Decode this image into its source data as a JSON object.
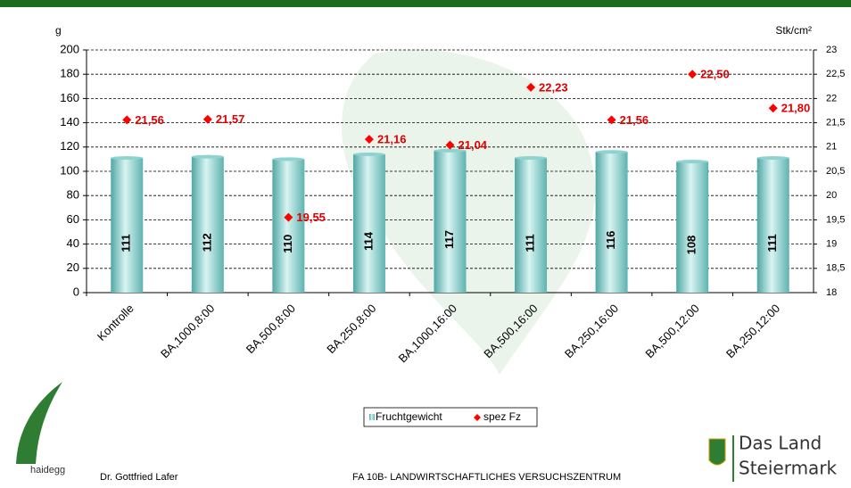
{
  "chart_data": {
    "type": "bar",
    "categories": [
      "Kontrolle",
      "BA,1000,8:00",
      "BA,500,8:00",
      "BA,250,8:00",
      "BA,1000,16:00",
      "BA,500,16:00",
      "BA,250,16:00",
      "BA,500,12:00",
      "BA,250,12:00"
    ],
    "series": [
      {
        "name": "Fruchtgewicht",
        "color": "#8fd3d0",
        "values": [
          111,
          112,
          110,
          114,
          117,
          111,
          116,
          108,
          111
        ]
      },
      {
        "name": "spez Fz",
        "color": "#ff0000",
        "axis": "y2",
        "values": [
          21.56,
          21.57,
          19.55,
          21.16,
          21.04,
          22.23,
          21.56,
          22.5,
          21.8
        ],
        "value_labels": [
          "21,56",
          "21,57",
          "19,55",
          "21,16",
          "21,04",
          "22,23",
          "21,56",
          "22,50",
          "21,80"
        ]
      }
    ],
    "ylabel": "g",
    "y2label": "Stk/cm²",
    "ylim": [
      0,
      200
    ],
    "yticks": [
      0,
      20,
      40,
      60,
      80,
      100,
      120,
      140,
      160,
      180,
      200
    ],
    "y2lim": [
      18,
      23
    ],
    "y2ticks": [
      18,
      {
        "value": 18.5,
        "label": "18,5"
      },
      19,
      {
        "value": 19.5,
        "label": "19,5"
      },
      20,
      {
        "value": 20.5,
        "label": "20,5"
      },
      21,
      {
        "value": 21.5,
        "label": "21,5"
      },
      22,
      {
        "value": 22.5,
        "label": "22,5"
      },
      23
    ],
    "grid": true,
    "legend": "bottom"
  },
  "footer": {
    "author": "Dr. Gottfried Lafer",
    "institution": "FA 10B- LANDWIRTSCHAFTLICHES VERSUCHSZENTRUM",
    "logo_left": "haidegg",
    "logo_right_1": "Das Land",
    "logo_right_2": "Steiermark"
  }
}
